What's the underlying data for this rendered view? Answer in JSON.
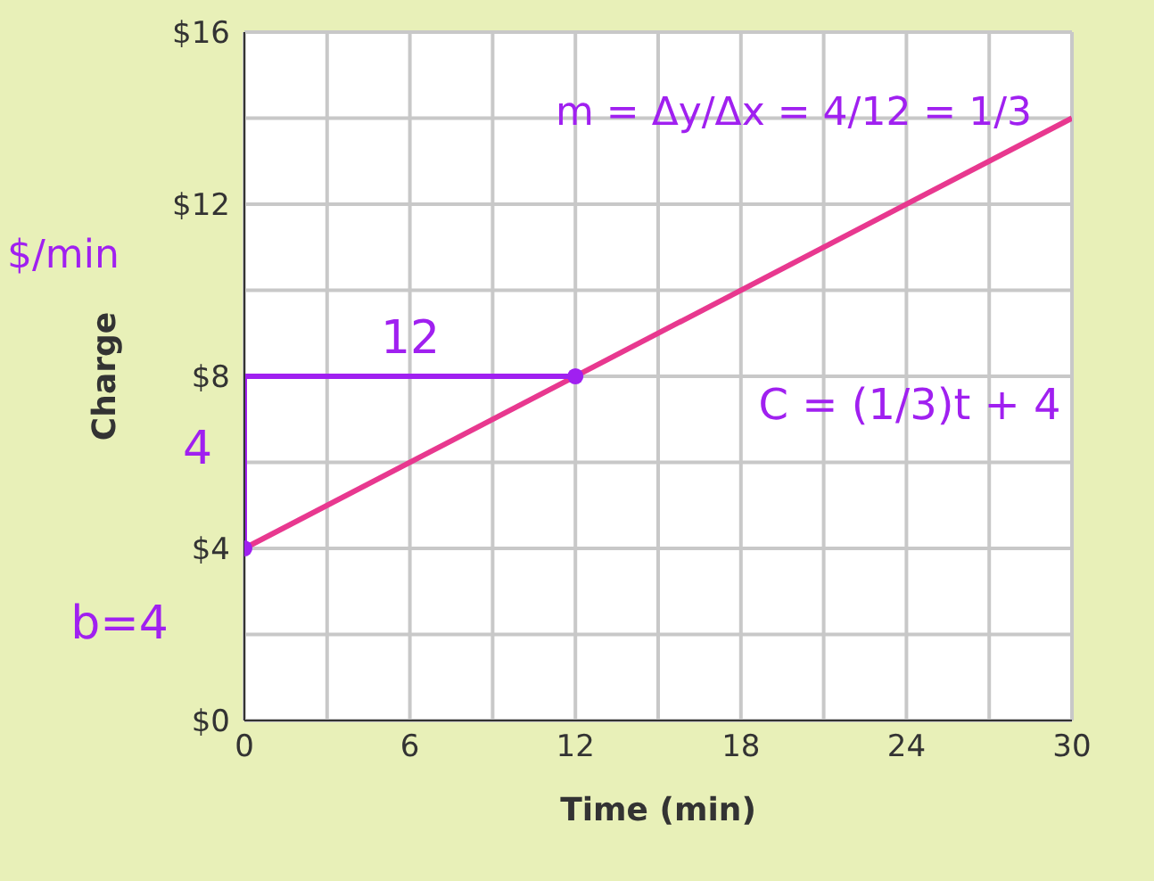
{
  "chart_data": {
    "type": "line",
    "xlabel": "Time (min)",
    "ylabel": "Charge",
    "xlim": [
      0,
      30
    ],
    "ylim": [
      0,
      16
    ],
    "xticks": [
      0,
      {
        "value": 3,
        "label": null
      },
      6,
      {
        "value": 9,
        "label": null
      },
      12,
      {
        "value": 15,
        "label": null
      },
      18,
      {
        "value": 21,
        "label": null
      },
      24,
      {
        "value": 27,
        "label": null
      },
      30
    ],
    "yticks": [
      {
        "value": 0,
        "label": "$0"
      },
      {
        "value": 2,
        "label": null
      },
      {
        "value": 4,
        "label": "$4"
      },
      {
        "value": 6,
        "label": null
      },
      {
        "value": 8,
        "label": "$8"
      },
      {
        "value": 10,
        "label": null
      },
      {
        "value": 12,
        "label": "$12"
      },
      {
        "value": 14,
        "label": null
      },
      {
        "value": 16,
        "label": "$16"
      }
    ],
    "grid": true,
    "series": [
      {
        "color": "#e8388f",
        "x": [
          0,
          30
        ],
        "values": [
          4,
          14
        ],
        "marker": "none",
        "line_style": "solid"
      },
      {
        "type": "line",
        "color": "#a020f0",
        "x": [
          0,
          0,
          12
        ],
        "values": [
          4,
          8,
          8
        ],
        "marker": "none",
        "line_style": "solid"
      },
      {
        "type": "scatter",
        "color": "#a020f0",
        "x": [
          0,
          12
        ],
        "values": [
          4,
          8
        ],
        "marker": "circle"
      }
    ],
    "annotations": [
      "m = Δy/Δx = 4/12 = 1/3",
      "C = (1/3)t + 4",
      "12",
      "4",
      "b=4",
      "$/min"
    ]
  }
}
